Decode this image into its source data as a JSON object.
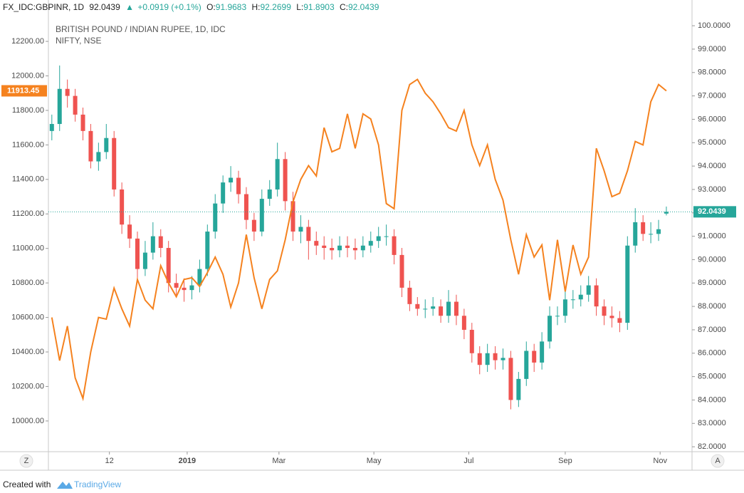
{
  "legend": {
    "symbol": "FX_IDC:GBPINR, 1D",
    "change": "+0.0919 (+0.1%)",
    "o": "O:",
    "h": "H:",
    "l": "L:",
    "c": "C:"
  },
  "controls": [
    "Z",
    "A"
  ],
  "footer": {
    "created": "Created with",
    "brand": "TradingView"
  },
  "chart_data": {
    "type": "candlestick",
    "x": [
      -87,
      -82,
      -77,
      -72,
      -67,
      -62,
      -57,
      -52,
      -47,
      -42,
      -37,
      -32,
      -27,
      -22,
      -17,
      -12,
      -7,
      -2,
      3,
      8,
      13,
      18,
      23,
      28,
      33,
      38,
      43,
      48,
      53,
      58,
      63,
      68,
      73,
      78,
      83,
      88,
      93,
      98,
      103,
      108,
      113,
      118,
      123,
      128,
      133,
      138,
      143,
      148,
      153,
      158,
      163,
      168,
      173,
      178,
      183,
      188,
      193,
      198,
      203,
      208,
      213,
      218,
      223,
      228,
      233,
      238,
      243,
      248,
      253,
      258,
      263,
      268,
      273,
      278,
      283,
      288,
      293,
      298,
      303,
      308
    ],
    "xlim": [
      -89.2,
      324.5
    ],
    "xticks": [
      {
        "value": -50,
        "label": "12"
      },
      {
        "value": 0,
        "label": "2019"
      },
      {
        "value": 59,
        "label": "Mar"
      },
      {
        "value": 120,
        "label": "May"
      },
      {
        "value": 181,
        "label": "Jul"
      },
      {
        "value": 243,
        "label": "Sep"
      },
      {
        "value": 304,
        "label": "Nov"
      }
    ],
    "ylim": [
      9822,
      12349
    ],
    "yticks": [
      {
        "value": 10000,
        "label": "10000.00"
      },
      {
        "value": 10200,
        "label": "10200.00"
      },
      {
        "value": 10400,
        "label": "10400.00"
      },
      {
        "value": 10600,
        "label": "10600.00"
      },
      {
        "value": 10800,
        "label": "10800.00"
      },
      {
        "value": 11000,
        "label": "11000.00"
      },
      {
        "value": 11200,
        "label": "11200.00"
      },
      {
        "value": 11400,
        "label": "11400.00"
      },
      {
        "value": 11600,
        "label": "11600.00"
      },
      {
        "value": 11800,
        "label": "11800.00"
      },
      {
        "value": 12000,
        "label": "12000.00"
      },
      {
        "value": 12200,
        "label": "12200.00"
      }
    ],
    "y2lim": [
      81.79,
      100.43
    ],
    "y2ticks": [
      {
        "value": 82,
        "label": "82.0000"
      },
      {
        "value": 83,
        "label": "83.0000"
      },
      {
        "value": 84,
        "label": "84.0000"
      },
      {
        "value": 85,
        "label": "85.0000"
      },
      {
        "value": 86,
        "label": "86.0000"
      },
      {
        "value": 87,
        "label": "87.0000"
      },
      {
        "value": 88,
        "label": "88.0000"
      },
      {
        "value": 89,
        "label": "89.0000"
      },
      {
        "value": 90,
        "label": "90.0000"
      },
      {
        "value": 91,
        "label": "91.0000"
      },
      {
        "value": 92,
        "label": "92.0000"
      },
      {
        "value": 93,
        "label": "93.0000"
      },
      {
        "value": 94,
        "label": "94.0000"
      },
      {
        "value": 95,
        "label": "95.0000"
      },
      {
        "value": 96,
        "label": "96.0000"
      },
      {
        "value": 97,
        "label": "97.0000"
      },
      {
        "value": 98,
        "label": "98.0000"
      },
      {
        "value": 99,
        "label": "99.0000"
      },
      {
        "value": 100,
        "label": "100.0000"
      }
    ],
    "grid": false,
    "series": [
      {
        "name": "BRITISH POUND / INDIAN RUPEE, 1D, IDC",
        "axis": "y2",
        "up_color": "#26a69a",
        "down_color": "#ef5350",
        "open": [
          95.5,
          95.8,
          97.3,
          97.0,
          96.2,
          95.5,
          94.2,
          94.6,
          95.2,
          93.0,
          91.5,
          90.9,
          89.6,
          90.3,
          91.0,
          90.5,
          89.0,
          88.8,
          88.7,
          88.9,
          89.6,
          91.2,
          92.4,
          93.3,
          93.5,
          92.8,
          91.7,
          91.2,
          92.6,
          93.0,
          94.3,
          92.5,
          91.2,
          91.4,
          90.8,
          90.6,
          90.5,
          90.4,
          90.6,
          90.5,
          90.4,
          90.6,
          90.8,
          91.0,
          91.0,
          90.2,
          88.8,
          88.1,
          87.9,
          87.9,
          88.0,
          87.6,
          88.2,
          87.6,
          87.0,
          86.0,
          85.5,
          86.0,
          85.7,
          85.8,
          84.0,
          84.9,
          86.1,
          85.6,
          86.5,
          87.6,
          87.6,
          88.3,
          88.3,
          88.5,
          88.9,
          88.0,
          87.6,
          87.5,
          87.3,
          90.6,
          91.6,
          91.1,
          91.1,
          91.9683
        ],
        "high": [
          96.2,
          98.3,
          97.7,
          97.3,
          96.5,
          95.8,
          95.0,
          95.8,
          95.5,
          93.3,
          91.9,
          91.2,
          90.8,
          91.6,
          91.3,
          90.8,
          89.4,
          89.2,
          89.3,
          90.0,
          91.5,
          92.8,
          93.6,
          94.0,
          93.8,
          93.1,
          92.0,
          93.0,
          93.4,
          95.0,
          94.6,
          92.9,
          91.9,
          91.7,
          91.2,
          91.0,
          90.9,
          91.0,
          91.0,
          90.9,
          91.0,
          91.2,
          91.4,
          91.5,
          91.3,
          90.5,
          89.1,
          88.4,
          88.3,
          88.4,
          88.3,
          88.7,
          88.5,
          87.9,
          87.3,
          86.3,
          86.4,
          86.3,
          86.2,
          86.1,
          85.2,
          86.5,
          86.4,
          86.9,
          88.0,
          88.0,
          88.7,
          88.7,
          88.9,
          89.3,
          89.2,
          88.3,
          88.0,
          87.8,
          91.0,
          92.2,
          91.9,
          91.6,
          91.7,
          92.2699
        ],
        "low": [
          95.1,
          95.5,
          96.5,
          95.9,
          95.1,
          93.9,
          93.8,
          94.3,
          92.7,
          91.1,
          90.5,
          89.2,
          89.3,
          90.0,
          90.1,
          88.6,
          88.4,
          88.2,
          88.3,
          88.6,
          89.3,
          90.9,
          92.0,
          92.9,
          92.4,
          91.3,
          90.8,
          91.0,
          92.3,
          92.7,
          92.1,
          90.8,
          90.7,
          90.0,
          90.2,
          90.0,
          90.0,
          90.1,
          90.1,
          90.0,
          90.1,
          90.3,
          90.5,
          90.6,
          89.8,
          88.4,
          87.8,
          87.6,
          87.5,
          87.6,
          87.3,
          87.3,
          87.2,
          86.6,
          85.6,
          85.1,
          85.2,
          85.3,
          85.3,
          83.6,
          83.7,
          84.6,
          85.2,
          85.3,
          86.2,
          87.2,
          87.3,
          87.9,
          88.0,
          88.2,
          87.6,
          87.2,
          87.1,
          86.9,
          87.0,
          90.3,
          90.8,
          90.7,
          90.8,
          91.8903
        ],
        "close": [
          95.8,
          97.3,
          97.0,
          96.2,
          95.5,
          94.2,
          94.6,
          95.2,
          93.0,
          91.5,
          90.9,
          89.6,
          90.3,
          91.0,
          90.5,
          89.0,
          88.8,
          88.7,
          88.9,
          89.6,
          91.2,
          92.4,
          93.3,
          93.5,
          92.8,
          91.7,
          91.2,
          92.6,
          93.0,
          94.3,
          92.5,
          91.2,
          91.4,
          90.8,
          90.6,
          90.5,
          90.4,
          90.6,
          90.5,
          90.4,
          90.6,
          90.8,
          91.0,
          91.0,
          90.2,
          88.8,
          88.1,
          87.9,
          87.9,
          88.0,
          87.6,
          88.2,
          87.6,
          87.0,
          86.0,
          85.5,
          86.0,
          85.7,
          85.8,
          84.0,
          84.9,
          86.1,
          85.6,
          86.5,
          87.6,
          87.6,
          88.3,
          88.3,
          88.5,
          88.9,
          88.0,
          87.6,
          87.5,
          87.3,
          90.6,
          91.6,
          91.1,
          91.1,
          91.3,
          92.0439
        ]
      },
      {
        "name": "NIFTY, NSE",
        "type": "line",
        "color": "#f5821f",
        "values": [
          10600,
          10350,
          10550,
          10250,
          10130,
          10400,
          10600,
          10590,
          10770,
          10650,
          10550,
          10820,
          10700,
          10650,
          10900,
          10800,
          10720,
          10820,
          10830,
          10780,
          10860,
          10950,
          10850,
          10660,
          10800,
          11080,
          10830,
          10650,
          10820,
          10870,
          11050,
          11270,
          11400,
          11480,
          11420,
          11700,
          11560,
          11580,
          11780,
          11580,
          11780,
          11750,
          11600,
          11260,
          11230,
          11800,
          11950,
          11980,
          11900,
          11850,
          11780,
          11700,
          11680,
          11800,
          11600,
          11480,
          11600,
          11400,
          11280,
          11050,
          10850,
          11080,
          10950,
          11020,
          10700,
          11050,
          10750,
          11020,
          10850,
          10950,
          11580,
          11450,
          11300,
          11320,
          11450,
          11620,
          11600,
          11850,
          11950,
          11913.45
        ]
      }
    ]
  }
}
